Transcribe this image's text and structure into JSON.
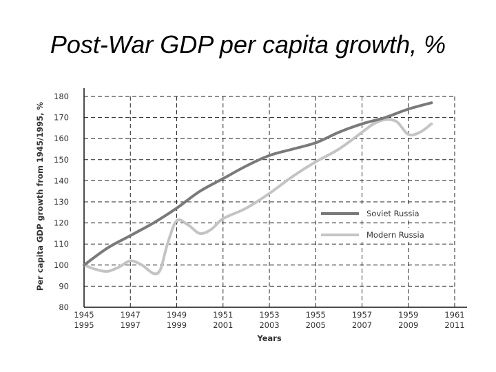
{
  "slide": {
    "title": "Post-War GDP per capita growth, %"
  },
  "chart_data": {
    "type": "line",
    "title": "Post-War GDP per capita growth, %",
    "xlabel": "Years",
    "ylabel": "Per capita GDP growth from 1945/1995, %",
    "ylim": [
      80,
      180
    ],
    "y_ticks": [
      80,
      90,
      100,
      110,
      120,
      130,
      140,
      150,
      160,
      170,
      180
    ],
    "xlim": [
      0,
      16
    ],
    "x_ticks": [
      {
        "x": 0,
        "top": "1945",
        "bottom": "1995"
      },
      {
        "x": 2,
        "top": "1947",
        "bottom": "1997"
      },
      {
        "x": 4,
        "top": "1949",
        "bottom": "1999"
      },
      {
        "x": 6,
        "top": "1951",
        "bottom": "2001"
      },
      {
        "x": 8,
        "top": "1953",
        "bottom": "2003"
      },
      {
        "x": 10,
        "top": "1955",
        "bottom": "2005"
      },
      {
        "x": 12,
        "top": "1957",
        "bottom": "2007"
      },
      {
        "x": 14,
        "top": "1959",
        "bottom": "2009"
      },
      {
        "x": 16,
        "top": "1961",
        "bottom": "2011"
      }
    ],
    "grid": true,
    "legend_position": "right",
    "series": [
      {
        "name": "Soviet Russia",
        "color": "#7a7a7a",
        "x": [
          0,
          1,
          2,
          3,
          4,
          5,
          6,
          7,
          8,
          9,
          10,
          11,
          12,
          13,
          14,
          15
        ],
        "y": [
          100,
          108,
          114,
          120,
          127,
          135,
          141,
          147,
          152,
          155,
          158,
          163,
          167,
          170,
          174,
          177
        ]
      },
      {
        "name": "Modern Russia",
        "color": "#c4c4c4",
        "x": [
          0,
          0.5,
          1,
          1.5,
          2,
          2.5,
          3,
          3.3,
          3.6,
          4,
          4.5,
          5,
          5.5,
          6,
          7,
          8,
          9,
          10,
          11,
          12,
          12.5,
          13,
          13.5,
          14,
          14.5,
          15
        ],
        "y": [
          100,
          98,
          97,
          99,
          102,
          100,
          96,
          98,
          110,
          121,
          119,
          115,
          117,
          122,
          127,
          134,
          142,
          149,
          155,
          163,
          167,
          169,
          168,
          162,
          163,
          167
        ]
      }
    ]
  }
}
